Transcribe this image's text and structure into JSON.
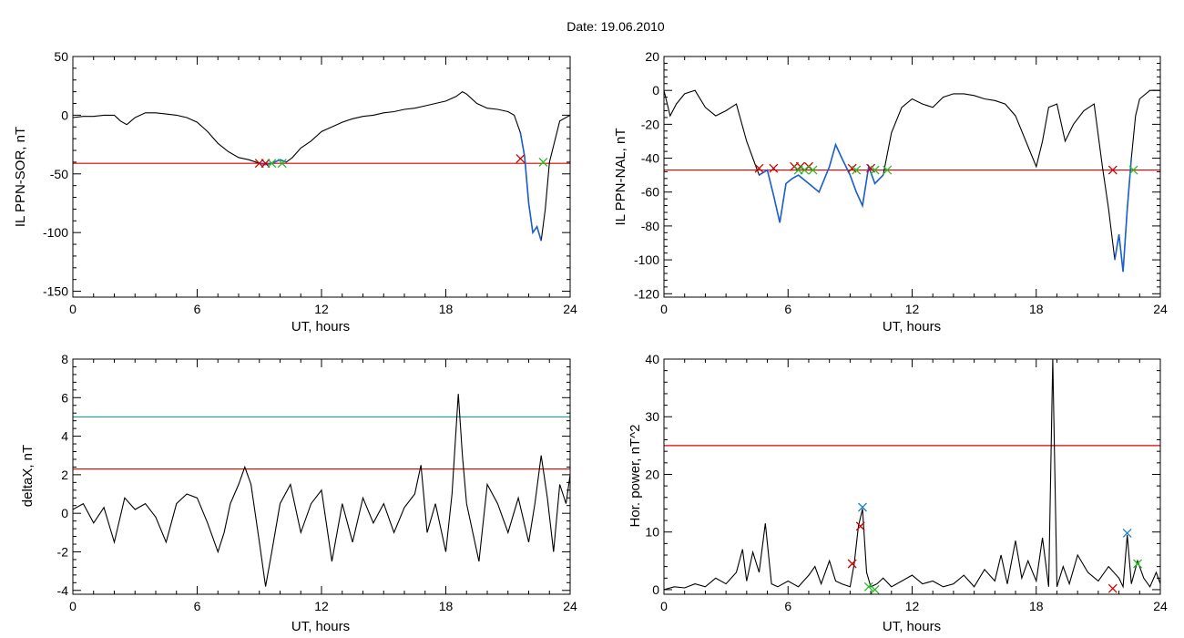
{
  "page_title": "Date:  19.06.2010",
  "colors": {
    "trace": "#000000",
    "threshold": "#dd0000",
    "threshold2": "#1a9a9a",
    "highlight": "#1a5fd0",
    "start_marker": "#cc0000",
    "end_marker": "#22bb22",
    "peak_marker": "#1a7fd0"
  },
  "chart_data": [
    {
      "type": "line",
      "title": "",
      "xlabel": "UT, hours",
      "ylabel": "IL PPN-SOR, nT",
      "xlim": [
        0,
        24
      ],
      "ylim": [
        -155,
        50
      ],
      "xticks": [
        0,
        6,
        12,
        18,
        24
      ],
      "yticks": [
        -150,
        -100,
        -50,
        0,
        50
      ],
      "threshold": -41,
      "series": [
        {
          "x": [
            0,
            0.5,
            1,
            1.5,
            2,
            2.3,
            2.6,
            3,
            3.5,
            4,
            4.5,
            5,
            5.5,
            6,
            6.5,
            7,
            7.5,
            8,
            8.5,
            9,
            9.3,
            9.6,
            10,
            10.3,
            10.6,
            11,
            11.5,
            12,
            12.5,
            13,
            13.5,
            14,
            14.5,
            15,
            15.5,
            16,
            16.5,
            17,
            17.5,
            18,
            18.5,
            18.8,
            19,
            19.5,
            20,
            20.5,
            21,
            21.3,
            21.6,
            21.8,
            22,
            22.2,
            22.4,
            22.6,
            22.8,
            23,
            23.5,
            24
          ],
          "y": [
            -2,
            -1,
            -1,
            0,
            0,
            -5,
            -8,
            -2,
            2,
            2,
            1,
            0,
            -2,
            -6,
            -14,
            -24,
            -31,
            -36,
            -38,
            -41,
            -42,
            -41,
            -38,
            -40,
            -36,
            -28,
            -22,
            -14,
            -10,
            -6,
            -3,
            -1,
            0,
            2,
            3,
            5,
            6,
            8,
            10,
            12,
            16,
            20,
            18,
            10,
            6,
            5,
            3,
            0,
            -15,
            -35,
            -75,
            -100,
            -95,
            -107,
            -80,
            -40,
            -5,
            0
          ]
        }
      ],
      "highlights": [
        [
          9,
          10.3
        ],
        [
          21.5,
          22.7
        ]
      ],
      "start_markers": [
        [
          9.0,
          -41
        ],
        [
          9.3,
          -41
        ],
        [
          21.6,
          -37
        ]
      ],
      "end_markers": [
        [
          9.6,
          -41
        ],
        [
          10.1,
          -41
        ],
        [
          22.7,
          -40
        ]
      ]
    },
    {
      "type": "line",
      "title": "",
      "xlabel": "UT, hours",
      "ylabel": "IL PPN-NAL, nT",
      "xlim": [
        0,
        24
      ],
      "ylim": [
        -122,
        20
      ],
      "xticks": [
        0,
        6,
        12,
        18,
        24
      ],
      "yticks": [
        -120,
        -100,
        -80,
        -60,
        -40,
        -20,
        0,
        20
      ],
      "threshold": -47,
      "series": [
        {
          "x": [
            0,
            0.3,
            0.6,
            1,
            1.5,
            2,
            2.5,
            3,
            3.5,
            4,
            4.3,
            4.6,
            5,
            5.3,
            5.6,
            5.9,
            6.2,
            6.5,
            7,
            7.5,
            8,
            8.3,
            8.6,
            9,
            9.3,
            9.6,
            9.9,
            10.2,
            10.6,
            11,
            11.5,
            12,
            12.5,
            13,
            13.5,
            14,
            14.5,
            15,
            15.5,
            16,
            16.5,
            17,
            17.5,
            18,
            18.3,
            18.6,
            19,
            19.4,
            19.8,
            20.3,
            20.8,
            21.2,
            21.5,
            21.8,
            22,
            22.2,
            22.4,
            22.6,
            22.8,
            23,
            23.5,
            24
          ],
          "y": [
            0,
            -15,
            -8,
            -2,
            0,
            -10,
            -15,
            -12,
            -8,
            -30,
            -40,
            -50,
            -47,
            -62,
            -78,
            -55,
            -52,
            -50,
            -55,
            -60,
            -45,
            -32,
            -40,
            -50,
            -60,
            -68,
            -45,
            -55,
            -50,
            -25,
            -10,
            -5,
            -8,
            -10,
            -4,
            -2,
            -2,
            -3,
            -5,
            -6,
            -8,
            -15,
            -30,
            -45,
            -30,
            -10,
            -8,
            -30,
            -20,
            -12,
            -8,
            -45,
            -70,
            -100,
            -85,
            -107,
            -70,
            -40,
            -15,
            -5,
            0,
            0
          ]
        }
      ],
      "highlights": [
        [
          4.5,
          10.8
        ],
        [
          21.6,
          22.7
        ]
      ],
      "start_markers": [
        [
          4.6,
          -46
        ],
        [
          5.3,
          -46
        ],
        [
          6.3,
          -45
        ],
        [
          6.6,
          -45
        ],
        [
          7.0,
          -45
        ],
        [
          9.1,
          -46
        ],
        [
          10.0,
          -46
        ],
        [
          21.7,
          -47
        ]
      ],
      "end_markers": [
        [
          6.5,
          -47
        ],
        [
          6.8,
          -47
        ],
        [
          7.2,
          -47
        ],
        [
          9.3,
          -47
        ],
        [
          10.2,
          -47
        ],
        [
          10.8,
          -47
        ],
        [
          22.7,
          -47
        ]
      ]
    },
    {
      "type": "line",
      "title": "",
      "xlabel": "UT, hours",
      "ylabel": "deltaX, nT",
      "xlim": [
        0,
        24
      ],
      "ylim": [
        -4.2,
        8
      ],
      "xticks": [
        0,
        6,
        12,
        18,
        24
      ],
      "yticks": [
        -4,
        -2,
        0,
        2,
        4,
        6,
        8
      ],
      "thresholds": [
        2.3,
        5.0
      ],
      "series": [
        {
          "x": [
            0,
            0.5,
            1,
            1.5,
            2,
            2.5,
            3,
            3.5,
            4,
            4.5,
            5,
            5.5,
            6,
            6.5,
            7,
            7.3,
            7.6,
            8,
            8.3,
            8.6,
            9,
            9.3,
            9.6,
            10,
            10.5,
            11,
            11.5,
            12,
            12.5,
            13,
            13.5,
            14,
            14.5,
            15,
            15.5,
            16,
            16.5,
            16.8,
            17.1,
            17.5,
            18,
            18.3,
            18.6,
            18.8,
            19,
            19.3,
            19.6,
            20,
            20.5,
            21,
            21.5,
            22,
            22.3,
            22.6,
            22.9,
            23.2,
            23.5,
            23.8,
            24
          ],
          "y": [
            0.2,
            0.5,
            -0.5,
            0.3,
            -1.5,
            0.8,
            0.2,
            0.5,
            -0.2,
            -1.5,
            0.5,
            1.0,
            0.8,
            -0.5,
            -2.0,
            -1.0,
            0.5,
            1.5,
            2.4,
            1.5,
            -1.5,
            -3.8,
            -2.0,
            0.5,
            1.5,
            -1.0,
            0.5,
            1.2,
            -2.5,
            0.5,
            -1.5,
            0.8,
            -0.5,
            0.5,
            -1.0,
            0.3,
            1.0,
            2.5,
            -1.0,
            0.5,
            -2.0,
            1.0,
            6.2,
            3.0,
            0.5,
            -1.0,
            -2.5,
            1.5,
            0.5,
            -1.0,
            0.8,
            -1.5,
            0.5,
            3.0,
            0.8,
            -2.0,
            1.5,
            0.5,
            2.0
          ]
        }
      ]
    },
    {
      "type": "line",
      "title": "",
      "xlabel": "UT, hours",
      "ylabel": "Hor. power, nT^2",
      "xlim": [
        0,
        24
      ],
      "ylim": [
        -0.8,
        40
      ],
      "xticks": [
        0,
        6,
        12,
        18,
        24
      ],
      "yticks": [
        0,
        10,
        20,
        30,
        40
      ],
      "threshold": 25,
      "series": [
        {
          "x": [
            0,
            0.5,
            1,
            1.5,
            2,
            2.5,
            3,
            3.5,
            3.8,
            4,
            4.3,
            4.6,
            4.9,
            5.2,
            5.5,
            6,
            6.5,
            7,
            7.3,
            7.6,
            8,
            8.3,
            8.6,
            9,
            9.2,
            9.4,
            9.6,
            9.8,
            10,
            10.3,
            10.6,
            11,
            11.5,
            12,
            12.5,
            13,
            13.5,
            14,
            14.5,
            15,
            15.5,
            16,
            16.3,
            16.6,
            17,
            17.3,
            17.6,
            18,
            18.3,
            18.6,
            18.8,
            19,
            19.3,
            19.6,
            20,
            20.5,
            21,
            21.5,
            22,
            22.2,
            22.4,
            22.6,
            22.9,
            23.2,
            23.5,
            23.8,
            24
          ],
          "y": [
            0,
            0.5,
            0.3,
            1.0,
            0.5,
            2.0,
            1.0,
            3.0,
            7.0,
            1.5,
            6.5,
            3.0,
            11.5,
            1.0,
            0.5,
            1.5,
            0.5,
            2.5,
            4.0,
            1.0,
            5.0,
            1.5,
            1.0,
            0.5,
            4.5,
            11.0,
            14.0,
            3.0,
            0.5,
            1.0,
            2.0,
            0.5,
            1.5,
            2.5,
            1.0,
            1.5,
            0.5,
            1.0,
            2.5,
            0.5,
            3.5,
            1.5,
            6.0,
            1.0,
            8.5,
            2.0,
            5.0,
            1.5,
            9.0,
            0.5,
            40.0,
            0.5,
            4.0,
            1.0,
            6.0,
            3.0,
            1.5,
            4.0,
            2.0,
            0.5,
            9.5,
            1.0,
            5.0,
            2.0,
            0.5,
            3.0,
            1.0
          ]
        }
      ],
      "start_markers": [
        [
          9.1,
          4.5
        ],
        [
          9.5,
          11.0
        ],
        [
          21.7,
          0.2
        ]
      ],
      "end_markers": [
        [
          9.9,
          0.5
        ],
        [
          10.2,
          0.0
        ],
        [
          22.9,
          4.5
        ]
      ],
      "peak_markers": [
        [
          9.6,
          14.3
        ],
        [
          22.4,
          9.8
        ]
      ]
    }
  ]
}
